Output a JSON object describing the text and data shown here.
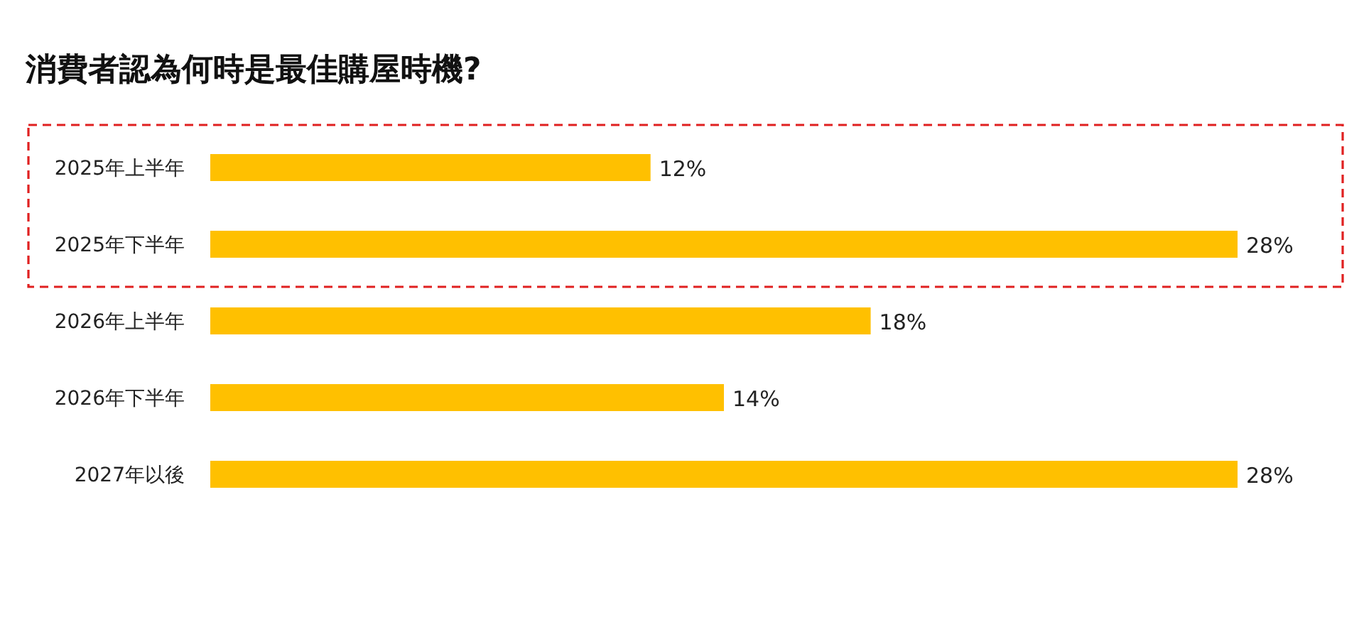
{
  "chart_data": {
    "type": "bar",
    "orientation": "horizontal",
    "title": "消費者認為何時是最佳購屋時機?",
    "categories": [
      "2025年上半年",
      "2025年下半年",
      "2026年上半年",
      "2026年下半年",
      "2027年以後"
    ],
    "values": [
      12,
      28,
      18,
      14,
      28
    ],
    "color": "#ffc000",
    "value_labels": [
      "12%",
      "28%",
      "18%",
      "14%",
      "28%"
    ]
  }
}
